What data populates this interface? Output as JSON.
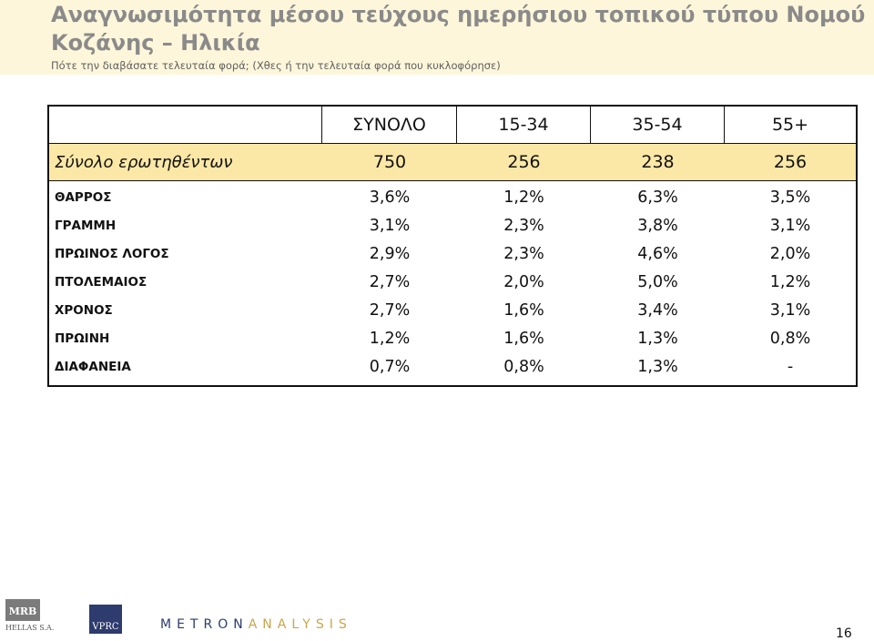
{
  "header": {
    "title_line1": "Αναγνωσιμότητα μέσου τεύχους ημερήσιου τοπικού τύπου Νομού",
    "title_line2": "Κοζάνης – Ηλικία",
    "subtitle": "Πότε την διαβάσατε τελευταία φορά; (Χθες ή την τελευταία φορά που κυκλοφόρησε)"
  },
  "table": {
    "columns": [
      "",
      "ΣΥΝΟΛΟ",
      "15-34",
      "35-54",
      "55+"
    ],
    "total_row": {
      "label": "Σύνολο ερωτηθέντων",
      "values": [
        "750",
        "256",
        "238",
        "256"
      ]
    },
    "rows": [
      {
        "label": "ΘΑΡΡΟΣ",
        "values": [
          "3,6%",
          "1,2%",
          "6,3%",
          "3,5%"
        ]
      },
      {
        "label": "ΓΡΑΜΜΗ",
        "values": [
          "3,1%",
          "2,3%",
          "3,8%",
          "3,1%"
        ]
      },
      {
        "label": "ΠΡΩΙΝΟΣ ΛΟΓΟΣ",
        "values": [
          "2,9%",
          "2,3%",
          "4,6%",
          "2,0%"
        ]
      },
      {
        "label": "ΠΤΟΛΕΜΑΙΟΣ",
        "values": [
          "2,7%",
          "2,0%",
          "5,0%",
          "1,2%"
        ]
      },
      {
        "label": "ΧΡΟΝΟΣ",
        "values": [
          "2,7%",
          "1,6%",
          "3,4%",
          "3,1%"
        ]
      },
      {
        "label": "ΠΡΩΙΝΗ",
        "values": [
          "1,2%",
          "1,6%",
          "1,3%",
          "0,8%"
        ]
      },
      {
        "label": "ΔΙΑΦΑΝΕΙΑ",
        "values": [
          "0,7%",
          "0,8%",
          "1,3%",
          "-"
        ]
      }
    ]
  },
  "footer": {
    "mrb_logo_text": "MRB",
    "mrb_sub_text": "HELLAS S.A.",
    "vprc_logo_text": "VPRC",
    "metron_left": "METRON",
    "metron_right": "ANALYSIS",
    "page_number": "16"
  },
  "colors": {
    "header_band": "#fdf6da",
    "title": "#8a8a8a",
    "total_row_bg": "#fbe8a6",
    "brand_blue": "#2d3b6e"
  }
}
